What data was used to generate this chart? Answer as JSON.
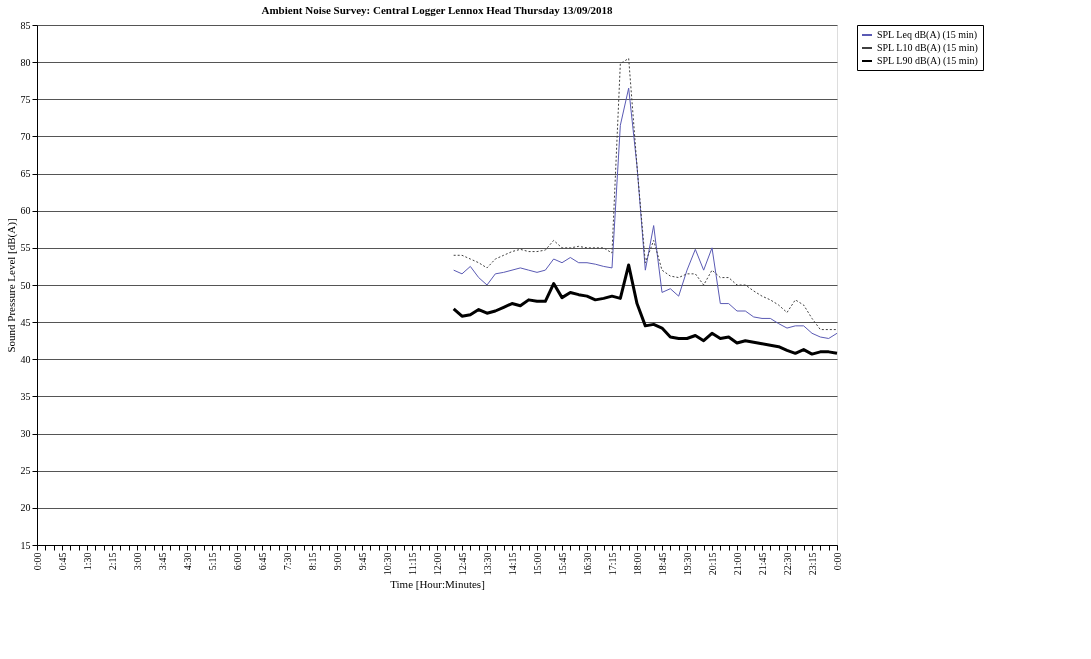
{
  "chart_data": {
    "type": "line",
    "title": "Ambient  Noise Survey: Central Logger Lennox Head Thursday  13/09/2018",
    "xlabel": "Time [Hour:Minutes]",
    "ylabel": "Sound Pressure Level  [dB(A)]",
    "categories": [
      "0:00",
      null,
      null,
      "0:45",
      null,
      null,
      "1:30",
      null,
      null,
      "2:15",
      null,
      null,
      "3:00",
      null,
      null,
      "3:45",
      null,
      null,
      "4:30",
      null,
      null,
      "5:15",
      null,
      null,
      "6:00",
      null,
      null,
      "6:45",
      null,
      null,
      "7:30",
      null,
      null,
      "8:15",
      null,
      null,
      "9:00",
      null,
      null,
      "9:45",
      null,
      null,
      "10:30",
      null,
      null,
      "11:15",
      null,
      null,
      "12:00",
      null,
      null,
      "12:45",
      null,
      null,
      "13:30",
      null,
      null,
      "14:15",
      null,
      null,
      "15:00",
      null,
      null,
      "15:45",
      null,
      null,
      "16:30",
      null,
      null,
      "17:15",
      null,
      null,
      "18:00",
      null,
      null,
      "18:45",
      null,
      null,
      "19:30",
      null,
      null,
      "20:15",
      null,
      null,
      "21:00",
      null,
      null,
      "21:45",
      null,
      null,
      "22:30",
      null,
      null,
      "23:15",
      null,
      null,
      "0:00"
    ],
    "series": [
      {
        "name": "SPL Leq dB(A) (15 min)",
        "color": "#5a5ab4",
        "line_style": "solid",
        "values": [
          null,
          null,
          null,
          null,
          null,
          null,
          null,
          null,
          null,
          null,
          null,
          null,
          null,
          null,
          null,
          null,
          null,
          null,
          null,
          null,
          null,
          null,
          null,
          null,
          null,
          null,
          null,
          null,
          null,
          null,
          null,
          null,
          null,
          null,
          null,
          null,
          null,
          null,
          null,
          null,
          null,
          null,
          null,
          null,
          null,
          null,
          null,
          null,
          null,
          null,
          52,
          51.5,
          52.5,
          51,
          50,
          51.5,
          51.7,
          52,
          52.3,
          52,
          51.7,
          52,
          53.5,
          53,
          53.7,
          53,
          53,
          52.8,
          52.5,
          52.3,
          71.5,
          76.5,
          66,
          52,
          58,
          49,
          49.5,
          48.5,
          52,
          54.8,
          52,
          55,
          47.5,
          47.5,
          46.5,
          46.5,
          45.7,
          45.5,
          45.5,
          44.8,
          44.2,
          44.5,
          44.5,
          43.5,
          43,
          42.8,
          43.5
        ]
      },
      {
        "name": "SPL L10 dB(A) (15 min)",
        "color": "#404040",
        "line_style": "dotted",
        "values": [
          null,
          null,
          null,
          null,
          null,
          null,
          null,
          null,
          null,
          null,
          null,
          null,
          null,
          null,
          null,
          null,
          null,
          null,
          null,
          null,
          null,
          null,
          null,
          null,
          null,
          null,
          null,
          null,
          null,
          null,
          null,
          null,
          null,
          null,
          null,
          null,
          null,
          null,
          null,
          null,
          null,
          null,
          null,
          null,
          null,
          null,
          null,
          null,
          null,
          null,
          54,
          54,
          53.5,
          53,
          52.3,
          53.5,
          54,
          54.5,
          54.8,
          54.5,
          54.5,
          54.7,
          56,
          55,
          55,
          55.2,
          55,
          55,
          55,
          54.3,
          79.8,
          80.5,
          66,
          53,
          56,
          52,
          51.2,
          51,
          51.5,
          51.5,
          50,
          52,
          51,
          51,
          50,
          50,
          49.2,
          48.5,
          48,
          47.3,
          46.3,
          48,
          47.3,
          45.5,
          44,
          44,
          44
        ]
      },
      {
        "name": "SPL L90 dB(A) (15 min)",
        "color": "#000000",
        "line_style": "solid",
        "values": [
          null,
          null,
          null,
          null,
          null,
          null,
          null,
          null,
          null,
          null,
          null,
          null,
          null,
          null,
          null,
          null,
          null,
          null,
          null,
          null,
          null,
          null,
          null,
          null,
          null,
          null,
          null,
          null,
          null,
          null,
          null,
          null,
          null,
          null,
          null,
          null,
          null,
          null,
          null,
          null,
          null,
          null,
          null,
          null,
          null,
          null,
          null,
          null,
          null,
          null,
          46.8,
          45.8,
          46,
          46.7,
          46.2,
          46.5,
          47,
          47.5,
          47.2,
          48,
          47.8,
          47.8,
          50.2,
          48.3,
          49,
          48.7,
          48.5,
          48,
          48.2,
          48.5,
          48.2,
          52.7,
          47.5,
          44.5,
          44.7,
          44.2,
          43,
          42.8,
          42.8,
          43.2,
          42.5,
          43.5,
          42.8,
          43,
          42.2,
          42.5,
          42.3,
          42.1,
          41.9,
          41.7,
          41.2,
          40.8,
          41.3,
          40.7,
          41,
          41,
          40.8
        ]
      }
    ],
    "ylim": [
      15,
      85
    ],
    "yticks": [
      15,
      20,
      25,
      30,
      35,
      40,
      45,
      50,
      55,
      60,
      65,
      70,
      75,
      80,
      85
    ],
    "grid": "y",
    "legend": "right",
    "marker": "none"
  }
}
